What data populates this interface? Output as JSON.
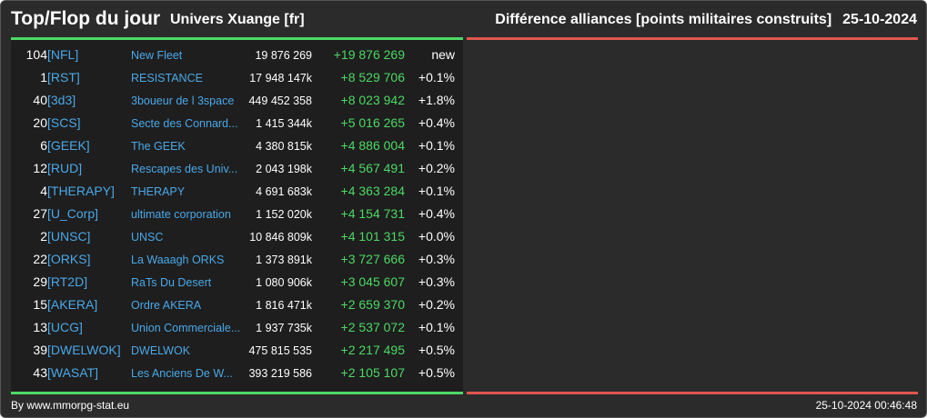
{
  "header": {
    "title": "Top/Flop du jour",
    "universe": "Univers Xuange [fr]",
    "subject": "Différence alliances [points militaires construits]",
    "date": "25-10-2024"
  },
  "colors": {
    "background": "#2b2b2b",
    "panel": "#1e1e1e",
    "accent_green": "#4cd964",
    "accent_red": "#e0574f",
    "link_blue": "#4aa8e8"
  },
  "top": [
    {
      "rank": "104",
      "tag": "[NFL]",
      "name": "New Fleet",
      "points": "19 876 269",
      "diff": "+19 876 269",
      "pct": "new"
    },
    {
      "rank": "1",
      "tag": "[RST]",
      "name": "RESISTANCE",
      "points": "17 948 147k",
      "diff": "+8 529 706",
      "pct": "+0.1%"
    },
    {
      "rank": "40",
      "tag": "[3d3]",
      "name": "3boueur de l 3space",
      "points": "449 452 358",
      "diff": "+8 023 942",
      "pct": "+1.8%"
    },
    {
      "rank": "20",
      "tag": "[SCS]",
      "name": "Secte des Connard...",
      "points": "1 415 344k",
      "diff": "+5 016 265",
      "pct": "+0.4%"
    },
    {
      "rank": "6",
      "tag": "[GEEK]",
      "name": "The GEEK",
      "points": "4 380 815k",
      "diff": "+4 886 004",
      "pct": "+0.1%"
    },
    {
      "rank": "12",
      "tag": "[RUD]",
      "name": "Rescapes des Univ...",
      "points": "2 043 198k",
      "diff": "+4 567 491",
      "pct": "+0.2%"
    },
    {
      "rank": "4",
      "tag": "[THERAPY]",
      "name": "THERAPY",
      "points": "4 691 683k",
      "diff": "+4 363 284",
      "pct": "+0.1%"
    },
    {
      "rank": "27",
      "tag": "[U_Corp]",
      "name": "ultimate corporation",
      "points": "1 152 020k",
      "diff": "+4 154 731",
      "pct": "+0.4%"
    },
    {
      "rank": "2",
      "tag": "[UNSC]",
      "name": "UNSC",
      "points": "10 846 809k",
      "diff": "+4 101 315",
      "pct": "+0.0%"
    },
    {
      "rank": "22",
      "tag": "[ORKS]",
      "name": "La Waaagh ORKS",
      "points": "1 373 891k",
      "diff": "+3 727 666",
      "pct": "+0.3%"
    },
    {
      "rank": "29",
      "tag": "[RT2D]",
      "name": "RaTs Du Desert",
      "points": "1 080 906k",
      "diff": "+3 045 607",
      "pct": "+0.3%"
    },
    {
      "rank": "15",
      "tag": "[AKERA]",
      "name": "Ordre AKERA",
      "points": "1 816 471k",
      "diff": "+2 659 370",
      "pct": "+0.2%"
    },
    {
      "rank": "13",
      "tag": "[UCG]",
      "name": "Union Commerciale...",
      "points": "1 937 735k",
      "diff": "+2 537 072",
      "pct": "+0.1%"
    },
    {
      "rank": "39",
      "tag": "[DWELWOK]",
      "name": "DWELWOK",
      "points": "475 815 535",
      "diff": "+2 217 495",
      "pct": "+0.5%"
    },
    {
      "rank": "43",
      "tag": "[WASAT]",
      "name": "Les Anciens De W...",
      "points": "393 219 586",
      "diff": "+2 105 107",
      "pct": "+0.5%"
    }
  ],
  "footer": {
    "source": "By www.mmorpg-stat.eu",
    "timestamp": "25-10-2024 00:46:48"
  }
}
